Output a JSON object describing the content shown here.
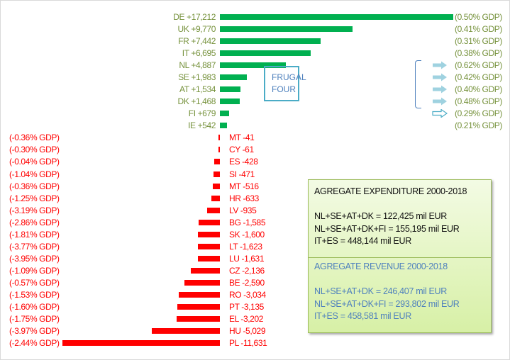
{
  "chart_data": {
    "type": "bar",
    "orientation": "horizontal",
    "units": "mil EUR",
    "colors": {
      "positive_bar": "#00b050",
      "positive_label": "#76923c",
      "negative": "#ff0000"
    },
    "rows": [
      {
        "label": "DE +17,212",
        "value": 17212,
        "gdp": "(0.50% GDP)"
      },
      {
        "label": "UK +9,770",
        "value": 9770,
        "gdp": "(0.41% GDP)"
      },
      {
        "label": "FR +7,442",
        "value": 7442,
        "gdp": "(0.31% GDP)"
      },
      {
        "label": "IT +6,695",
        "value": 6695,
        "gdp": "(0.38% GDP)"
      },
      {
        "label": "NL +4,887",
        "value": 4887,
        "gdp": "(0.62% GDP)"
      },
      {
        "label": "SE +1,983",
        "value": 1983,
        "gdp": "(0.42% GDP)"
      },
      {
        "label": "AT +1,534",
        "value": 1534,
        "gdp": "(0.40% GDP)"
      },
      {
        "label": "DK +1,468",
        "value": 1468,
        "gdp": "(0.48% GDP)"
      },
      {
        "label": "FI +679",
        "value": 679,
        "gdp": "(0.29% GDP)"
      },
      {
        "label": "IE +542",
        "value": 542,
        "gdp": "(0.21% GDP)"
      },
      {
        "label": "MT -41",
        "value": -41,
        "gdp": "(-0.36% GDP)"
      },
      {
        "label": "CY -61",
        "value": -61,
        "gdp": "(-0.30% GDP)"
      },
      {
        "label": "ES -428",
        "value": -428,
        "gdp": "(-0.04% GDP)"
      },
      {
        "label": "SI -471",
        "value": -471,
        "gdp": "(-1.04% GDP)"
      },
      {
        "label": "MT -516",
        "value": -516,
        "gdp": "(-0.36% GDP)"
      },
      {
        "label": "HR -633",
        "value": -633,
        "gdp": "(-1.25% GDP)"
      },
      {
        "label": "LV -935",
        "value": -935,
        "gdp": "(-3.19% GDP)"
      },
      {
        "label": "BG -1,585",
        "value": -1585,
        "gdp": "(-2.86% GDP)"
      },
      {
        "label": "SK -1,600",
        "value": -1600,
        "gdp": "(-1.81% GDP)"
      },
      {
        "label": "LT -1,623",
        "value": -1623,
        "gdp": "(-3.77% GDP)"
      },
      {
        "label": "LU -1,631",
        "value": -1631,
        "gdp": "(-3.95% GDP)"
      },
      {
        "label": "CZ -2,136",
        "value": -2136,
        "gdp": "(-1.09% GDP)"
      },
      {
        "label": "BE -2,590",
        "value": -2590,
        "gdp": "(-0.57% GDP)"
      },
      {
        "label": "RO -3,034",
        "value": -3034,
        "gdp": "(-1.53% GDP)"
      },
      {
        "label": "PT -3,135",
        "value": -3135,
        "gdp": "(-1.60% GDP)"
      },
      {
        "label": "EL -3,202",
        "value": -3202,
        "gdp": "(-1.75% GDP)"
      },
      {
        "label": "HU -5,029",
        "value": -5029,
        "gdp": "(-3.97% GDP)"
      },
      {
        "label": "PL -11,631",
        "value": -11631,
        "gdp": "(-2.44% GDP)"
      }
    ],
    "frugal_rows": [
      "NL",
      "SE",
      "AT",
      "DK",
      "FI"
    ]
  },
  "frugal": {
    "line1": "FRUGAL",
    "line2": "FOUR"
  },
  "aggregate": {
    "expenditure": {
      "title": "AGREGATE EXPENDITURE 2000-2018",
      "lines": [
        "NL+SE+AT+DK = 122,425 mil EUR",
        "NL+SE+AT+DK+FI = 155,195 mil EUR",
        "IT+ES = 448,144 mil EUR"
      ]
    },
    "revenue": {
      "title": "AGREGATE REVENUE 2000-2018",
      "lines": [
        "NL+SE+AT+DK = 246,407 mil EUR",
        "NL+SE+AT+DK+FI = 293,802 mil EUR",
        "IT+ES = 458,581 mil EUR"
      ]
    }
  }
}
